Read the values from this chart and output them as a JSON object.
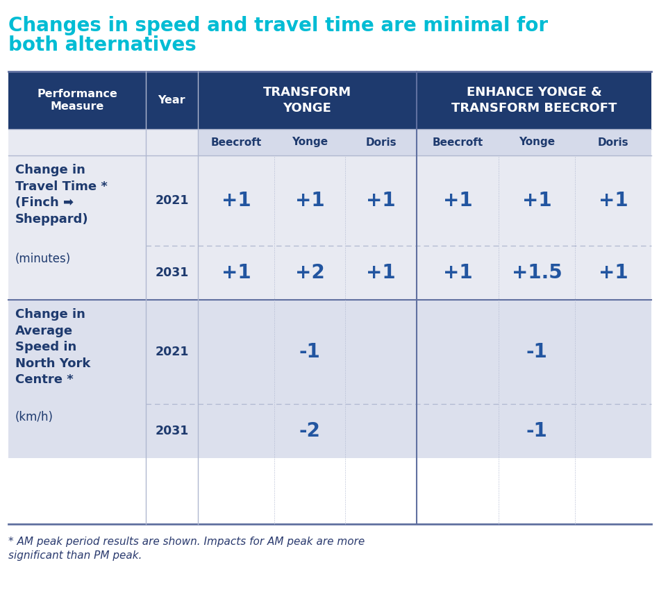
{
  "title_line1": "Changes in speed and travel time are minimal for",
  "title_line2": "both alternatives",
  "title_color": "#00bcd4",
  "header_bg": "#1e3a6e",
  "header_text_color": "#ffffff",
  "body_bg1": "#e8eaf2",
  "body_bg2": "#dce0ed",
  "dark_blue": "#1e3a6e",
  "medium_blue": "#2255a0",
  "line_color": "#b0b8d0",
  "strong_line_color": "#6070a0",
  "footnote_text_1": "* AM peak period results are shown. Impacts for AM peak are more",
  "footnote_text_2": "significant than PM peak.",
  "col_header": {
    "perf_measure": "Performance\nMeasure",
    "year": "Year",
    "transform_yonge": "TRANSFORM\nYONGE",
    "enhance_yonge": "ENHANCE YONGE &\nTRANSFORM BEECROFT"
  },
  "sub_cols_ty": [
    "Beecroft",
    "Yonge",
    "Doris"
  ],
  "sub_cols_ey": [
    "Beecroft",
    "Yonge",
    "Doris"
  ],
  "measure1_bold": "Change in\nTravel Time *\n(Finch ➡\nSheppard)",
  "measure1_normal": "(minutes)",
  "measure2_bold": "Change in\nAverage\nSpeed in\nNorth York\nCentre *",
  "measure2_normal": "(km/h)",
  "rows": [
    {
      "year": "2021",
      "ty": [
        "+1",
        "+1",
        "+1"
      ],
      "ey": [
        "+1",
        "+1",
        "+1"
      ]
    },
    {
      "year": "2031",
      "ty": [
        "+1",
        "+2",
        "+1"
      ],
      "ey": [
        "+1",
        "+1.5",
        "+1"
      ]
    },
    {
      "year": "2021",
      "ty": [
        "",
        "-1",
        ""
      ],
      "ey": [
        "",
        "-1",
        ""
      ]
    },
    {
      "year": "2031",
      "ty": [
        "",
        "-2",
        ""
      ],
      "ey": [
        "",
        "-1",
        ""
      ]
    }
  ]
}
